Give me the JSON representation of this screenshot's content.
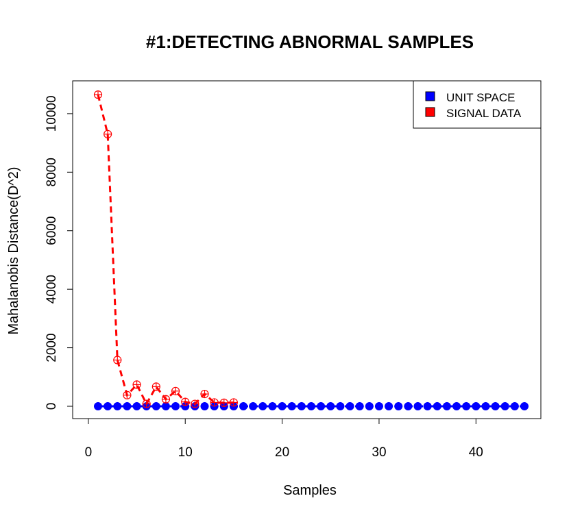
{
  "chart_data": {
    "type": "line",
    "title": "#1:DETECTING ABNORMAL SAMPLES",
    "xlabel": "Samples",
    "ylabel": "Mahalanobis Distance(D^2)",
    "xlim": [
      1,
      45
    ],
    "ylim": [
      0,
      10700
    ],
    "x_ticks": [
      0,
      10,
      20,
      30,
      40
    ],
    "y_ticks": [
      0,
      2000,
      4000,
      6000,
      8000,
      10000
    ],
    "legend_position": "top-right",
    "grid": false,
    "series": [
      {
        "name": "UNIT SPACE",
        "color": "#0000ff",
        "line_style": "dashed",
        "marker": "filled-circle-cross",
        "x": [
          1,
          2,
          3,
          4,
          5,
          6,
          7,
          8,
          9,
          10,
          11,
          12,
          13,
          14,
          15,
          16,
          17,
          18,
          19,
          20,
          21,
          22,
          23,
          24,
          25,
          26,
          27,
          28,
          29,
          30,
          31,
          32,
          33,
          34,
          35,
          36,
          37,
          38,
          39,
          40,
          41,
          42,
          43,
          44,
          45
        ],
        "values": [
          1,
          1,
          1,
          1,
          1,
          1,
          1,
          1,
          1,
          1,
          1,
          1,
          1,
          1,
          1,
          1,
          1,
          1,
          1,
          1,
          1,
          1,
          1,
          1,
          1,
          1,
          1,
          1,
          1,
          1,
          1,
          1,
          1,
          1,
          1,
          1,
          1,
          1,
          1,
          1,
          1,
          1,
          1,
          1,
          1
        ]
      },
      {
        "name": "SIGNAL DATA",
        "color": "#ff0000",
        "line_style": "dashed",
        "marker": "open-circle-cross",
        "x": [
          1,
          2,
          3,
          4,
          5,
          6,
          7,
          8,
          9,
          10,
          11,
          12,
          13,
          14,
          15
        ],
        "values": [
          10650,
          9300,
          1580,
          380,
          740,
          80,
          670,
          240,
          520,
          150,
          80,
          420,
          130,
          120,
          130
        ]
      }
    ]
  }
}
